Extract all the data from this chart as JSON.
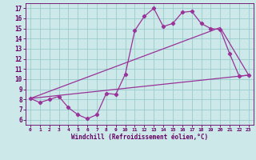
{
  "bg_color": "#cce8e8",
  "line_color": "#993399",
  "grid_color": "#99cccc",
  "xlabel": "Windchill (Refroidissement éolien,°C)",
  "xlabel_color": "#660066",
  "tick_color": "#660066",
  "xlim": [
    -0.5,
    23.5
  ],
  "ylim": [
    5.5,
    17.5
  ],
  "xticks": [
    0,
    1,
    2,
    3,
    4,
    5,
    6,
    7,
    8,
    9,
    10,
    11,
    12,
    13,
    14,
    15,
    16,
    17,
    18,
    19,
    20,
    21,
    22,
    23
  ],
  "yticks": [
    6,
    7,
    8,
    9,
    10,
    11,
    12,
    13,
    14,
    15,
    16,
    17
  ],
  "curve1_x": [
    0,
    1,
    2,
    3,
    4,
    5,
    6,
    7,
    8,
    9,
    10,
    11,
    12,
    13,
    14,
    15,
    16,
    17,
    18,
    19,
    20,
    21,
    22,
    23
  ],
  "curve1_y": [
    8.1,
    7.7,
    8.0,
    8.3,
    7.2,
    6.5,
    6.1,
    6.5,
    8.6,
    8.5,
    10.5,
    14.8,
    16.2,
    17.0,
    15.2,
    15.5,
    16.6,
    16.7,
    15.5,
    15.0,
    14.9,
    12.5,
    10.3,
    10.4
  ],
  "curve2_x": [
    0,
    23
  ],
  "curve2_y": [
    8.1,
    10.4
  ],
  "curve3_x": [
    0,
    20,
    23
  ],
  "curve3_y": [
    8.1,
    15.1,
    10.4
  ],
  "marker": "D",
  "markersize": 2.2,
  "linewidth": 0.9
}
